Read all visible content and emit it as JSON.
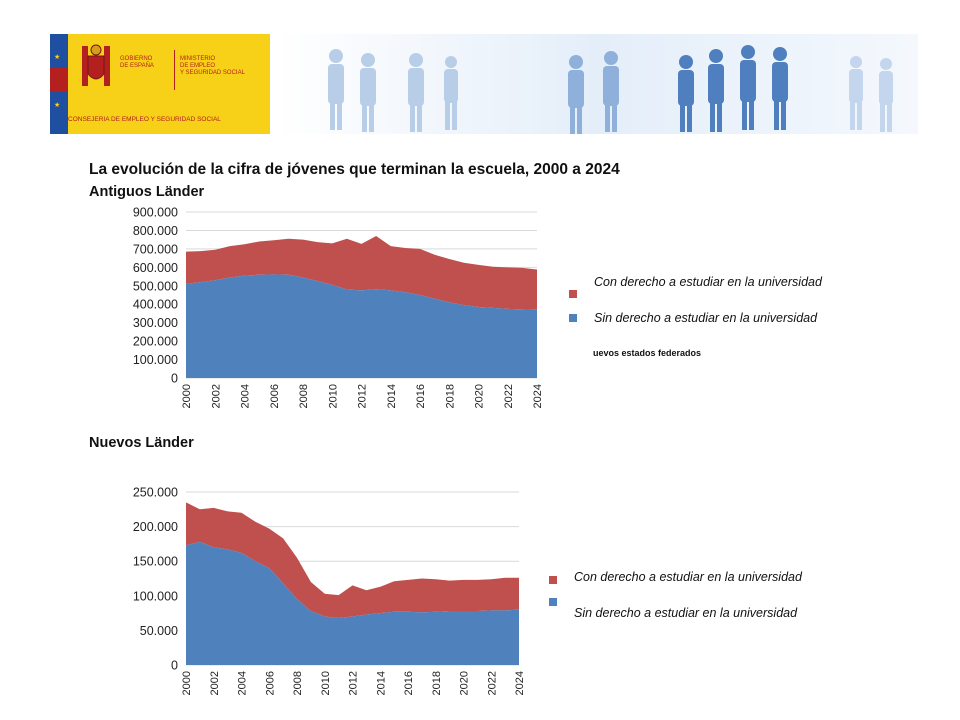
{
  "page_title": "La evolución de la cifra de jóvenes que terminan la escuela, 2000 a 2024",
  "banner": {
    "gov_line1": "GOBIERNO",
    "gov_line2": "DE ESPAÑA",
    "ministry_line1": "MINISTERIO",
    "ministry_line2": "DE EMPLEO",
    "ministry_line3": "Y SEGURIDAD SOCIAL",
    "consejeria": "CONSEJERIA DE EMPLEO Y SEGURIDAD SOCIAL",
    "colors": {
      "gold": "#f7d117",
      "red": "#b42020",
      "blue": "#1f4fa0"
    }
  },
  "colors": {
    "series_con": "#c0504d",
    "series_sin": "#4f81bd",
    "gridline": "#d9d9d9"
  },
  "note": "uevos estados federados",
  "chart_data": [
    {
      "type": "area",
      "stacked": true,
      "title": "Antiguos Länder",
      "x": [
        2000,
        2001,
        2002,
        2003,
        2004,
        2005,
        2006,
        2007,
        2008,
        2009,
        2010,
        2011,
        2012,
        2013,
        2014,
        2015,
        2016,
        2017,
        2018,
        2019,
        2020,
        2021,
        2022,
        2023,
        2024
      ],
      "x_tick_labels": [
        "2000",
        "2002",
        "2004",
        "2006",
        "2008",
        "2010",
        "2012",
        "2014",
        "2016",
        "2018",
        "2020",
        "2022",
        "2024"
      ],
      "y_tick_labels": [
        "0",
        "100.000",
        "200.000",
        "300.000",
        "400.000",
        "500.000",
        "600.000",
        "700.000",
        "800.000",
        "900.000"
      ],
      "ylim": [
        0,
        900000
      ],
      "y_step": 100000,
      "grid": true,
      "legend_position": "right",
      "series": [
        {
          "name": "Sin derecho a estudiar en la universidad",
          "color": "#4f81bd",
          "values": [
            510000,
            520000,
            530000,
            545000,
            555000,
            560000,
            562000,
            560000,
            545000,
            525000,
            505000,
            480000,
            475000,
            482000,
            475000,
            465000,
            450000,
            430000,
            410000,
            395000,
            385000,
            380000,
            375000,
            372000,
            370000
          ]
        },
        {
          "name": "Con derecho a estudiar en la universidad",
          "color": "#c0504d",
          "values": [
            175000,
            168000,
            165000,
            170000,
            170000,
            180000,
            185000,
            195000,
            205000,
            212000,
            225000,
            275000,
            252000,
            288000,
            240000,
            240000,
            250000,
            238000,
            235000,
            230000,
            228000,
            223000,
            225000,
            225000,
            218000
          ]
        }
      ],
      "legend": [
        "Con derecho a estudiar en la universidad",
        "Sin derecho a estudiar en la universidad"
      ]
    },
    {
      "type": "area",
      "stacked": true,
      "title": "Nuevos Länder",
      "x": [
        2000,
        2001,
        2002,
        2003,
        2004,
        2005,
        2006,
        2007,
        2008,
        2009,
        2010,
        2011,
        2012,
        2013,
        2014,
        2015,
        2016,
        2017,
        2018,
        2019,
        2020,
        2021,
        2022,
        2023,
        2024
      ],
      "x_tick_labels": [
        "2000",
        "2002",
        "2004",
        "2006",
        "2008",
        "2010",
        "2012",
        "2014",
        "2016",
        "2018",
        "2020",
        "2022",
        "2024"
      ],
      "y_tick_labels": [
        "0",
        "50.000",
        "100.000",
        "150.000",
        "200.000",
        "250.000"
      ],
      "ylim": [
        0,
        250000
      ],
      "y_step": 50000,
      "grid": true,
      "legend_position": "right",
      "series": [
        {
          "name": "Sin derecho a estudiar en la universidad",
          "color": "#4f81bd",
          "values": [
            173000,
            178000,
            170000,
            167000,
            162000,
            150000,
            140000,
            118000,
            95000,
            78000,
            70000,
            68000,
            70000,
            73000,
            75000,
            77000,
            77000,
            76000,
            77000,
            78000,
            78000,
            78000,
            79000,
            79000,
            80000
          ]
        },
        {
          "name": "Con derecho a estudiar en la universidad",
          "color": "#c0504d",
          "values": [
            62000,
            47000,
            57000,
            55000,
            58000,
            57000,
            57000,
            65000,
            60000,
            42000,
            33000,
            33000,
            45000,
            35000,
            38000,
            44000,
            46000,
            49000,
            47000,
            44000,
            45000,
            45000,
            45000,
            47000,
            46000
          ]
        }
      ],
      "legend": [
        "Con derecho a estudiar en la universidad",
        "Sin derecho a estudiar en la universidad"
      ]
    }
  ]
}
